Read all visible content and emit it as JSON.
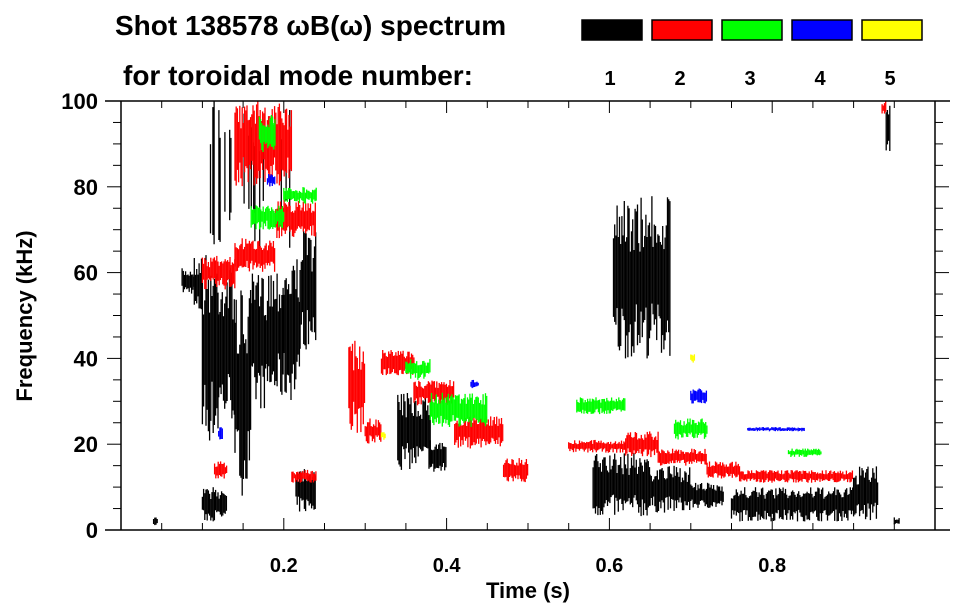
{
  "chart_data": {
    "type": "heatmap",
    "title_line1": "Shot 138578 ωB(ω) spectrum",
    "title_line2": "for toroidal mode number:",
    "xlabel": "Time (s)",
    "ylabel": "Frequency (kHz)",
    "xlim": [
      0,
      1.0
    ],
    "ylim": [
      0,
      100
    ],
    "xticks": [
      0.2,
      0.4,
      0.6,
      0.8
    ],
    "xtick_labels": [
      "0.2",
      "0.4",
      "0.6",
      "0.8"
    ],
    "yticks": [
      0,
      20,
      40,
      60,
      80,
      100
    ],
    "ytick_labels": [
      "0",
      "20",
      "40",
      "60",
      "80",
      "100"
    ],
    "legend": [
      {
        "label": "1",
        "color": "#000000"
      },
      {
        "label": "2",
        "color": "#ff0000"
      },
      {
        "label": "3",
        "color": "#00ff00"
      },
      {
        "label": "4",
        "color": "#0000ff"
      },
      {
        "label": "5",
        "color": "#ffff00"
      }
    ],
    "series": [
      {
        "name": "1",
        "color": "#000000",
        "blobs": [
          [
            0.075,
            0.09,
            55,
            61
          ],
          [
            0.09,
            0.1,
            50,
            64
          ],
          [
            0.1,
            0.12,
            20,
            65
          ],
          [
            0.12,
            0.14,
            25,
            62
          ],
          [
            0.14,
            0.16,
            8,
            56
          ],
          [
            0.16,
            0.18,
            28,
            60
          ],
          [
            0.18,
            0.2,
            30,
            62
          ],
          [
            0.2,
            0.22,
            30,
            64
          ],
          [
            0.22,
            0.24,
            42,
            70
          ],
          [
            0.1,
            0.13,
            2,
            10
          ],
          [
            0.215,
            0.24,
            4,
            15
          ],
          [
            0.11,
            0.22,
            65,
            100
          ],
          [
            0.34,
            0.38,
            14,
            32
          ],
          [
            0.38,
            0.4,
            13,
            21
          ],
          [
            0.04,
            0.045,
            1,
            3
          ],
          [
            0.58,
            0.65,
            3,
            18
          ],
          [
            0.65,
            0.7,
            4,
            15
          ],
          [
            0.7,
            0.74,
            5,
            11
          ],
          [
            0.75,
            0.9,
            2,
            10
          ],
          [
            0.9,
            0.93,
            2,
            15
          ],
          [
            0.94,
            0.945,
            88,
            100
          ],
          [
            0.95,
            0.957,
            1,
            3
          ],
          [
            0.605,
            0.675,
            40,
            78
          ]
        ]
      },
      {
        "name": "2",
        "color": "#ff0000",
        "blobs": [
          [
            0.1,
            0.14,
            56,
            64
          ],
          [
            0.14,
            0.19,
            60,
            68
          ],
          [
            0.19,
            0.24,
            68,
            77
          ],
          [
            0.115,
            0.13,
            12,
            16
          ],
          [
            0.21,
            0.24,
            11,
            14
          ],
          [
            0.28,
            0.3,
            22,
            45
          ],
          [
            0.3,
            0.32,
            20,
            26
          ],
          [
            0.32,
            0.36,
            36,
            42
          ],
          [
            0.36,
            0.41,
            29,
            35
          ],
          [
            0.41,
            0.47,
            19,
            27
          ],
          [
            0.47,
            0.5,
            11,
            17
          ],
          [
            0.55,
            0.62,
            18,
            21
          ],
          [
            0.62,
            0.66,
            17,
            23
          ],
          [
            0.66,
            0.72,
            15,
            19
          ],
          [
            0.72,
            0.76,
            12,
            16
          ],
          [
            0.76,
            0.9,
            11,
            14
          ],
          [
            0.14,
            0.21,
            80,
            100
          ],
          [
            0.935,
            0.94,
            97,
            100
          ]
        ]
      },
      {
        "name": "3",
        "color": "#00ff00",
        "blobs": [
          [
            0.16,
            0.2,
            70,
            76
          ],
          [
            0.2,
            0.24,
            76,
            80
          ],
          [
            0.17,
            0.19,
            88,
            97
          ],
          [
            0.35,
            0.38,
            35,
            40
          ],
          [
            0.38,
            0.45,
            24,
            32
          ],
          [
            0.56,
            0.62,
            27,
            31
          ],
          [
            0.68,
            0.72,
            21,
            26
          ],
          [
            0.82,
            0.86,
            17,
            19
          ]
        ]
      },
      {
        "name": "4",
        "color": "#0000ff",
        "blobs": [
          [
            0.18,
            0.19,
            80,
            83
          ],
          [
            0.12,
            0.125,
            21,
            24
          ],
          [
            0.7,
            0.72,
            29,
            33
          ],
          [
            0.77,
            0.84,
            23,
            24
          ],
          [
            0.43,
            0.44,
            33,
            35
          ]
        ]
      },
      {
        "name": "5",
        "color": "#ffff00",
        "blobs": [
          [
            0.32,
            0.325,
            21,
            23
          ],
          [
            0.7,
            0.705,
            39,
            41
          ]
        ]
      }
    ]
  }
}
